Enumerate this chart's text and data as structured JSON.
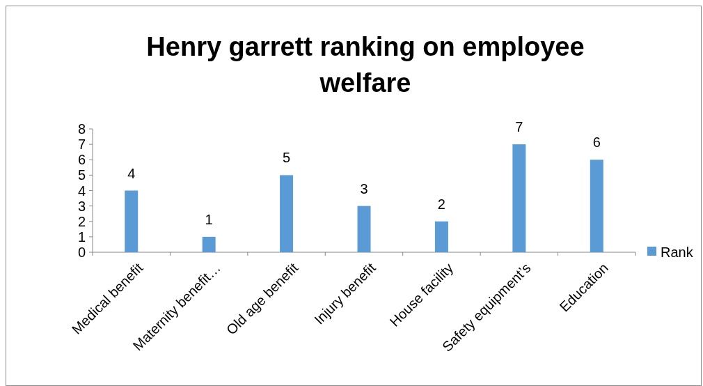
{
  "chart_data": {
    "type": "bar",
    "title": "Henry garrett ranking on employee welfare",
    "categories": [
      "Medical benefit",
      "Maternity benefit…",
      "Old age benefit",
      "Injury benefit",
      "House facility",
      "Safety equipment’s",
      "Education"
    ],
    "series": [
      {
        "name": "Rank",
        "color": "#5b9bd5",
        "values": [
          4,
          1,
          5,
          3,
          2,
          7,
          6
        ]
      }
    ],
    "ylim": [
      0,
      8
    ],
    "yticks": [
      0,
      1,
      2,
      3,
      4,
      5,
      6,
      7,
      8
    ],
    "data_labels": true,
    "legend": "right",
    "grid": false
  }
}
